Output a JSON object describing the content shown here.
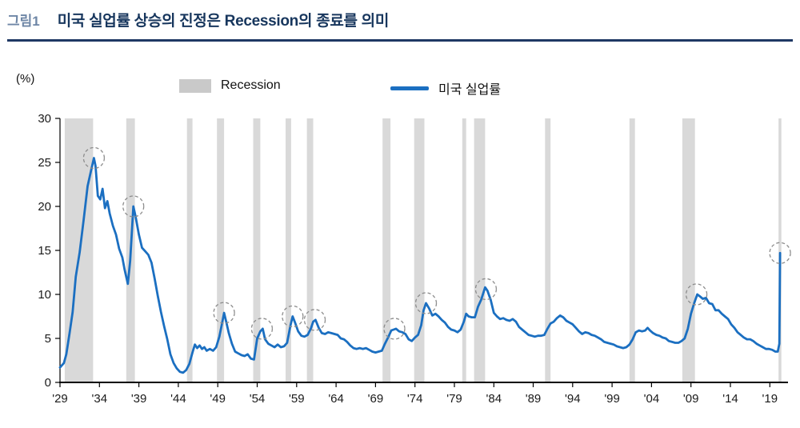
{
  "header": {
    "figure_label": "그림1",
    "title": "미국 실업률 상승의 진정은 Recession의 종료를 의미"
  },
  "legend": {
    "recession": "Recession",
    "unemployment": "미국 실업률"
  },
  "chart_data": {
    "type": "line",
    "title": "미국 실업률 상승의 진정은 Recession의 종료를 의미",
    "unit_label": "(%)",
    "xlabel": "",
    "ylabel": "(%)",
    "xlim": [
      1929,
      2021.3
    ],
    "ylim": [
      0,
      30
    ],
    "grid": false,
    "legend_position": "top",
    "y_ticks": [
      0,
      5,
      10,
      15,
      20,
      25,
      30
    ],
    "x_ticks": [
      {
        "year": 1929,
        "label": "'29"
      },
      {
        "year": 1934,
        "label": "'34"
      },
      {
        "year": 1939,
        "label": "'39"
      },
      {
        "year": 1944,
        "label": "'44"
      },
      {
        "year": 1949,
        "label": "'49"
      },
      {
        "year": 1954,
        "label": "'54"
      },
      {
        "year": 1959,
        "label": "'59"
      },
      {
        "year": 1964,
        "label": "'64"
      },
      {
        "year": 1969,
        "label": "'69"
      },
      {
        "year": 1974,
        "label": "'74"
      },
      {
        "year": 1979,
        "label": "'79"
      },
      {
        "year": 1984,
        "label": "'84"
      },
      {
        "year": 1989,
        "label": "'89"
      },
      {
        "year": 1994,
        "label": "'94"
      },
      {
        "year": 1999,
        "label": "'99"
      },
      {
        "year": 2004,
        "label": "'04"
      },
      {
        "year": 2009,
        "label": "'09"
      },
      {
        "year": 2014,
        "label": "'14"
      },
      {
        "year": 2019,
        "label": "'19"
      }
    ],
    "colors": {
      "line": "#1b6fc1",
      "recession_band": "#d9d9d9",
      "axis": "#000000",
      "peak_circle": "#8c8c8c",
      "title_navy": "#17365d",
      "figure_label_blue": "#6e86a6"
    },
    "recessions": [
      [
        1929.6,
        1933.2
      ],
      [
        1937.4,
        1938.5
      ],
      [
        1945.1,
        1945.8
      ],
      [
        1948.9,
        1949.8
      ],
      [
        1953.5,
        1954.4
      ],
      [
        1957.6,
        1958.3
      ],
      [
        1960.3,
        1961.1
      ],
      [
        1969.9,
        1970.9
      ],
      [
        1973.9,
        1975.2
      ],
      [
        1980.0,
        1980.5
      ],
      [
        1981.5,
        1982.9
      ],
      [
        1990.5,
        1991.2
      ],
      [
        2001.2,
        2001.9
      ],
      [
        2007.9,
        2009.5
      ],
      [
        2020.1,
        2020.45
      ]
    ],
    "peak_circles": [
      [
        1933.3,
        25.5
      ],
      [
        1938.3,
        20.0
      ],
      [
        1949.8,
        7.9
      ],
      [
        1954.6,
        6.1
      ],
      [
        1958.5,
        7.5
      ],
      [
        1961.3,
        7.1
      ],
      [
        1971.4,
        6.1
      ],
      [
        1975.4,
        9.0
      ],
      [
        1983.0,
        10.6
      ],
      [
        2009.7,
        10.0
      ],
      [
        2020.3,
        14.7
      ]
    ],
    "series": [
      {
        "name": "미국 실업률",
        "color": "#1b6fc1",
        "points": [
          [
            1929.0,
            1.7
          ],
          [
            1929.5,
            2.2
          ],
          [
            1929.8,
            3.2
          ],
          [
            1930.2,
            5.5
          ],
          [
            1930.6,
            8.0
          ],
          [
            1931.0,
            12.0
          ],
          [
            1931.5,
            14.8
          ],
          [
            1932.0,
            18.5
          ],
          [
            1932.5,
            22.3
          ],
          [
            1933.0,
            24.3
          ],
          [
            1933.3,
            25.5
          ],
          [
            1933.5,
            24.6
          ],
          [
            1933.8,
            21.2
          ],
          [
            1934.1,
            20.8
          ],
          [
            1934.4,
            22.0
          ],
          [
            1934.7,
            19.8
          ],
          [
            1935.0,
            20.6
          ],
          [
            1935.3,
            19.2
          ],
          [
            1935.7,
            17.8
          ],
          [
            1936.1,
            16.8
          ],
          [
            1936.5,
            15.2
          ],
          [
            1936.9,
            14.2
          ],
          [
            1937.2,
            12.8
          ],
          [
            1937.6,
            11.2
          ],
          [
            1937.9,
            13.8
          ],
          [
            1938.3,
            20.0
          ],
          [
            1938.6,
            18.8
          ],
          [
            1939.0,
            16.8
          ],
          [
            1939.4,
            15.3
          ],
          [
            1939.8,
            14.9
          ],
          [
            1940.2,
            14.5
          ],
          [
            1940.6,
            13.6
          ],
          [
            1941.0,
            11.8
          ],
          [
            1941.4,
            9.8
          ],
          [
            1941.8,
            8.0
          ],
          [
            1942.2,
            6.4
          ],
          [
            1942.6,
            4.9
          ],
          [
            1943.0,
            3.2
          ],
          [
            1943.4,
            2.2
          ],
          [
            1943.8,
            1.6
          ],
          [
            1944.2,
            1.2
          ],
          [
            1944.6,
            1.1
          ],
          [
            1945.0,
            1.4
          ],
          [
            1945.4,
            2.1
          ],
          [
            1945.8,
            3.4
          ],
          [
            1946.1,
            4.3
          ],
          [
            1946.4,
            3.9
          ],
          [
            1946.7,
            4.2
          ],
          [
            1947.0,
            3.8
          ],
          [
            1947.3,
            4.0
          ],
          [
            1947.6,
            3.6
          ],
          [
            1948.0,
            3.8
          ],
          [
            1948.4,
            3.6
          ],
          [
            1948.8,
            4.0
          ],
          [
            1949.2,
            5.2
          ],
          [
            1949.5,
            6.5
          ],
          [
            1949.8,
            7.9
          ],
          [
            1950.1,
            6.8
          ],
          [
            1950.4,
            5.6
          ],
          [
            1950.8,
            4.4
          ],
          [
            1951.2,
            3.5
          ],
          [
            1951.6,
            3.3
          ],
          [
            1952.0,
            3.1
          ],
          [
            1952.4,
            3.0
          ],
          [
            1952.8,
            3.2
          ],
          [
            1953.2,
            2.7
          ],
          [
            1953.6,
            2.6
          ],
          [
            1954.0,
            5.0
          ],
          [
            1954.4,
            5.8
          ],
          [
            1954.7,
            6.1
          ],
          [
            1955.0,
            4.9
          ],
          [
            1955.4,
            4.4
          ],
          [
            1955.8,
            4.2
          ],
          [
            1956.2,
            4.0
          ],
          [
            1956.6,
            4.3
          ],
          [
            1957.0,
            4.0
          ],
          [
            1957.4,
            4.1
          ],
          [
            1957.8,
            4.5
          ],
          [
            1958.2,
            6.4
          ],
          [
            1958.5,
            7.5
          ],
          [
            1958.8,
            6.8
          ],
          [
            1959.2,
            5.8
          ],
          [
            1959.6,
            5.3
          ],
          [
            1960.0,
            5.2
          ],
          [
            1960.4,
            5.4
          ],
          [
            1960.8,
            6.1
          ],
          [
            1961.1,
            6.9
          ],
          [
            1961.4,
            7.1
          ],
          [
            1961.8,
            6.2
          ],
          [
            1962.2,
            5.6
          ],
          [
            1962.6,
            5.5
          ],
          [
            1963.0,
            5.7
          ],
          [
            1963.4,
            5.6
          ],
          [
            1963.8,
            5.5
          ],
          [
            1964.2,
            5.4
          ],
          [
            1964.6,
            5.0
          ],
          [
            1965.0,
            4.9
          ],
          [
            1965.4,
            4.6
          ],
          [
            1965.8,
            4.2
          ],
          [
            1966.2,
            3.9
          ],
          [
            1966.6,
            3.8
          ],
          [
            1967.0,
            3.9
          ],
          [
            1967.4,
            3.8
          ],
          [
            1967.8,
            3.9
          ],
          [
            1968.2,
            3.7
          ],
          [
            1968.6,
            3.5
          ],
          [
            1969.0,
            3.4
          ],
          [
            1969.4,
            3.5
          ],
          [
            1969.8,
            3.6
          ],
          [
            1970.2,
            4.4
          ],
          [
            1970.6,
            5.1
          ],
          [
            1971.0,
            5.9
          ],
          [
            1971.3,
            6.0
          ],
          [
            1971.6,
            6.1
          ],
          [
            1972.0,
            5.8
          ],
          [
            1972.4,
            5.7
          ],
          [
            1972.8,
            5.5
          ],
          [
            1973.2,
            4.9
          ],
          [
            1973.6,
            4.7
          ],
          [
            1974.0,
            5.1
          ],
          [
            1974.4,
            5.4
          ],
          [
            1974.8,
            6.5
          ],
          [
            1975.1,
            8.2
          ],
          [
            1975.4,
            9.0
          ],
          [
            1975.8,
            8.4
          ],
          [
            1976.2,
            7.6
          ],
          [
            1976.6,
            7.8
          ],
          [
            1977.0,
            7.5
          ],
          [
            1977.4,
            7.1
          ],
          [
            1977.8,
            6.8
          ],
          [
            1978.2,
            6.3
          ],
          [
            1978.6,
            6.0
          ],
          [
            1979.0,
            5.9
          ],
          [
            1979.4,
            5.7
          ],
          [
            1979.8,
            6.0
          ],
          [
            1980.2,
            6.9
          ],
          [
            1980.5,
            7.8
          ],
          [
            1980.8,
            7.5
          ],
          [
            1981.2,
            7.4
          ],
          [
            1981.6,
            7.4
          ],
          [
            1982.0,
            8.6
          ],
          [
            1982.4,
            9.4
          ],
          [
            1982.9,
            10.8
          ],
          [
            1983.2,
            10.4
          ],
          [
            1983.6,
            9.4
          ],
          [
            1984.0,
            7.9
          ],
          [
            1984.4,
            7.5
          ],
          [
            1984.8,
            7.2
          ],
          [
            1985.2,
            7.3
          ],
          [
            1985.6,
            7.1
          ],
          [
            1986.0,
            7.0
          ],
          [
            1986.4,
            7.2
          ],
          [
            1986.8,
            6.9
          ],
          [
            1987.2,
            6.3
          ],
          [
            1987.6,
            6.0
          ],
          [
            1988.0,
            5.7
          ],
          [
            1988.4,
            5.4
          ],
          [
            1988.8,
            5.3
          ],
          [
            1989.2,
            5.2
          ],
          [
            1989.6,
            5.3
          ],
          [
            1990.0,
            5.3
          ],
          [
            1990.4,
            5.4
          ],
          [
            1990.8,
            6.1
          ],
          [
            1991.2,
            6.7
          ],
          [
            1991.6,
            6.9
          ],
          [
            1992.0,
            7.3
          ],
          [
            1992.4,
            7.6
          ],
          [
            1992.8,
            7.4
          ],
          [
            1993.2,
            7.0
          ],
          [
            1993.6,
            6.8
          ],
          [
            1994.0,
            6.6
          ],
          [
            1994.4,
            6.2
          ],
          [
            1994.8,
            5.8
          ],
          [
            1995.2,
            5.5
          ],
          [
            1995.6,
            5.7
          ],
          [
            1996.0,
            5.6
          ],
          [
            1996.4,
            5.4
          ],
          [
            1996.8,
            5.3
          ],
          [
            1997.2,
            5.1
          ],
          [
            1997.6,
            4.9
          ],
          [
            1998.0,
            4.6
          ],
          [
            1998.4,
            4.5
          ],
          [
            1998.8,
            4.4
          ],
          [
            1999.2,
            4.3
          ],
          [
            1999.6,
            4.1
          ],
          [
            2000.0,
            4.0
          ],
          [
            2000.4,
            3.9
          ],
          [
            2000.8,
            4.0
          ],
          [
            2001.2,
            4.3
          ],
          [
            2001.6,
            4.9
          ],
          [
            2002.0,
            5.7
          ],
          [
            2002.4,
            5.9
          ],
          [
            2002.8,
            5.8
          ],
          [
            2003.2,
            5.9
          ],
          [
            2003.5,
            6.2
          ],
          [
            2003.8,
            5.9
          ],
          [
            2004.2,
            5.6
          ],
          [
            2004.6,
            5.4
          ],
          [
            2005.0,
            5.3
          ],
          [
            2005.4,
            5.1
          ],
          [
            2005.8,
            5.0
          ],
          [
            2006.2,
            4.7
          ],
          [
            2006.6,
            4.6
          ],
          [
            2007.0,
            4.5
          ],
          [
            2007.4,
            4.5
          ],
          [
            2007.8,
            4.7
          ],
          [
            2008.2,
            5.0
          ],
          [
            2008.6,
            6.1
          ],
          [
            2009.0,
            7.8
          ],
          [
            2009.4,
            9.0
          ],
          [
            2009.8,
            10.0
          ],
          [
            2010.1,
            9.8
          ],
          [
            2010.5,
            9.5
          ],
          [
            2010.9,
            9.6
          ],
          [
            2011.3,
            9.0
          ],
          [
            2011.7,
            8.9
          ],
          [
            2012.1,
            8.2
          ],
          [
            2012.5,
            8.2
          ],
          [
            2012.9,
            7.8
          ],
          [
            2013.3,
            7.5
          ],
          [
            2013.7,
            7.2
          ],
          [
            2014.1,
            6.6
          ],
          [
            2014.5,
            6.2
          ],
          [
            2014.9,
            5.7
          ],
          [
            2015.3,
            5.4
          ],
          [
            2015.7,
            5.1
          ],
          [
            2016.1,
            4.9
          ],
          [
            2016.5,
            4.9
          ],
          [
            2016.9,
            4.7
          ],
          [
            2017.3,
            4.4
          ],
          [
            2017.7,
            4.2
          ],
          [
            2018.1,
            4.0
          ],
          [
            2018.5,
            3.8
          ],
          [
            2018.9,
            3.8
          ],
          [
            2019.3,
            3.7
          ],
          [
            2019.7,
            3.5
          ],
          [
            2020.0,
            3.5
          ],
          [
            2020.2,
            4.4
          ],
          [
            2020.3,
            14.7
          ]
        ]
      }
    ]
  }
}
